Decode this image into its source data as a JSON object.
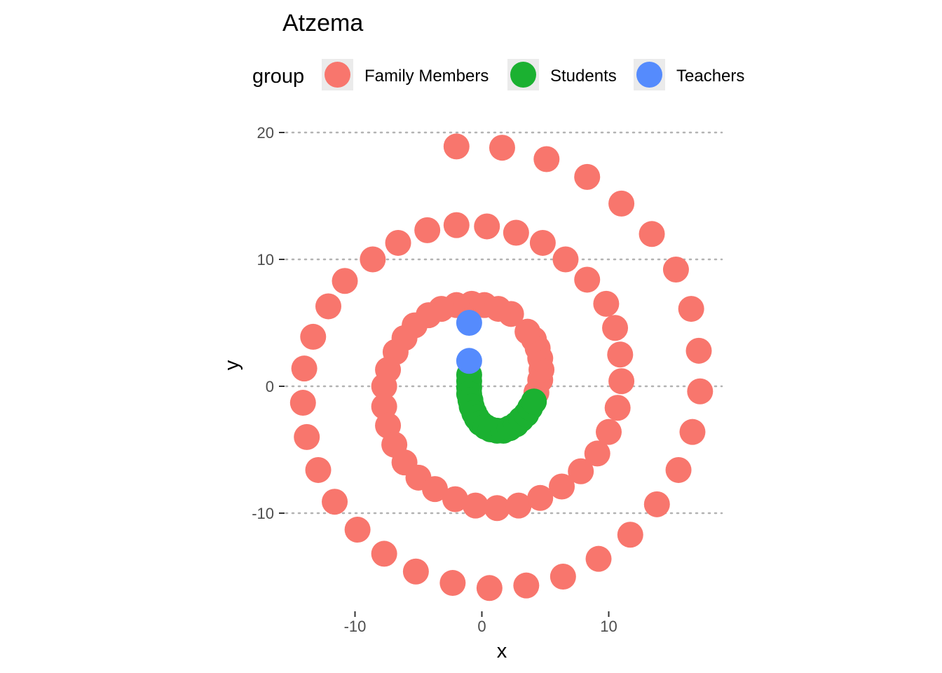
{
  "chart_data": {
    "type": "scatter",
    "title": "Atzema",
    "xlabel": "x",
    "ylabel": "y",
    "xlim": [
      -15.8,
      18.8
    ],
    "ylim": [
      -17.6,
      20.2
    ],
    "x_ticks": [
      -10,
      0,
      10
    ],
    "y_ticks": [
      20,
      10,
      0,
      -10
    ],
    "grid": {
      "major_y": true,
      "major_x": false,
      "style": "dotted"
    },
    "legend": {
      "title": "group",
      "position": "top"
    },
    "series": [
      {
        "name": "Family Members",
        "color": "#F8766D",
        "points": [
          [
            4.3,
            -0.5
          ],
          [
            4.6,
            0.5
          ],
          [
            4.7,
            1.3
          ],
          [
            4.6,
            2.2
          ],
          [
            4.4,
            3.0
          ],
          [
            4.1,
            3.7
          ],
          [
            3.6,
            4.3
          ],
          [
            2.3,
            5.7
          ],
          [
            1.3,
            6.1
          ],
          [
            0.2,
            6.4
          ],
          [
            -0.8,
            6.5
          ],
          [
            -2.0,
            6.4
          ],
          [
            -3.2,
            6.1
          ],
          [
            -4.2,
            5.6
          ],
          [
            -5.3,
            4.8
          ],
          [
            -6.1,
            3.8
          ],
          [
            -6.8,
            2.7
          ],
          [
            -7.4,
            1.3
          ],
          [
            -7.7,
            0.0
          ],
          [
            -7.7,
            -1.6
          ],
          [
            -7.4,
            -3.1
          ],
          [
            -6.9,
            -4.6
          ],
          [
            -6.1,
            -6.0
          ],
          [
            -5.0,
            -7.2
          ],
          [
            -3.7,
            -8.1
          ],
          [
            -2.1,
            -8.9
          ],
          [
            -0.5,
            -9.4
          ],
          [
            1.2,
            -9.6
          ],
          [
            2.9,
            -9.4
          ],
          [
            4.6,
            -8.8
          ],
          [
            6.3,
            -7.9
          ],
          [
            7.8,
            -6.7
          ],
          [
            9.1,
            -5.3
          ],
          [
            10.0,
            -3.6
          ],
          [
            10.7,
            -1.7
          ],
          [
            11.0,
            0.4
          ],
          [
            10.9,
            2.5
          ],
          [
            10.5,
            4.6
          ],
          [
            9.8,
            6.5
          ],
          [
            8.3,
            8.4
          ],
          [
            6.6,
            10.0
          ],
          [
            4.8,
            11.3
          ],
          [
            2.7,
            12.1
          ],
          [
            0.4,
            12.6
          ],
          [
            -2.0,
            12.7
          ],
          [
            -4.3,
            12.3
          ],
          [
            -6.6,
            11.3
          ],
          [
            -8.6,
            10.0
          ],
          [
            -10.8,
            8.3
          ],
          [
            -12.1,
            6.3
          ],
          [
            -13.3,
            3.9
          ],
          [
            -14.0,
            1.4
          ],
          [
            -14.1,
            -1.3
          ],
          [
            -13.8,
            -4.0
          ],
          [
            -12.9,
            -6.6
          ],
          [
            -11.6,
            -9.1
          ],
          [
            -9.8,
            -11.3
          ],
          [
            -7.7,
            -13.2
          ],
          [
            -5.2,
            -14.6
          ],
          [
            -2.3,
            -15.5
          ],
          [
            0.6,
            -15.9
          ],
          [
            3.5,
            -15.7
          ],
          [
            6.4,
            -15.0
          ],
          [
            9.2,
            -13.6
          ],
          [
            11.7,
            -11.7
          ],
          [
            13.8,
            -9.3
          ],
          [
            15.5,
            -6.6
          ],
          [
            16.6,
            -3.6
          ],
          [
            17.2,
            -0.4
          ],
          [
            17.1,
            2.8
          ],
          [
            16.5,
            6.1
          ],
          [
            15.3,
            9.2
          ],
          [
            13.4,
            12.0
          ],
          [
            11.0,
            14.4
          ],
          [
            8.3,
            16.5
          ],
          [
            5.1,
            17.9
          ],
          [
            1.6,
            18.8
          ],
          [
            -2.0,
            18.9
          ]
        ]
      },
      {
        "name": "Students",
        "color": "#1BB131",
        "points": [
          [
            -1.0,
            0.9
          ],
          [
            -1.0,
            0.4
          ],
          [
            -1.0,
            -0.1
          ],
          [
            -1.0,
            -0.6
          ],
          [
            -0.9,
            -1.1
          ],
          [
            -0.8,
            -1.6
          ],
          [
            -0.6,
            -2.1
          ],
          [
            -0.4,
            -2.5
          ],
          [
            -0.1,
            -2.9
          ],
          [
            0.3,
            -3.2
          ],
          [
            0.7,
            -3.4
          ],
          [
            1.2,
            -3.5
          ],
          [
            1.7,
            -3.5
          ],
          [
            2.2,
            -3.3
          ],
          [
            2.7,
            -3.0
          ],
          [
            3.1,
            -2.6
          ],
          [
            3.5,
            -2.2
          ],
          [
            3.8,
            -1.7
          ],
          [
            4.1,
            -1.2
          ]
        ]
      },
      {
        "name": "Teachers",
        "color": "#558BFD",
        "points": [
          [
            -1.0,
            5.0
          ],
          [
            -1.0,
            2.0
          ]
        ]
      }
    ]
  }
}
